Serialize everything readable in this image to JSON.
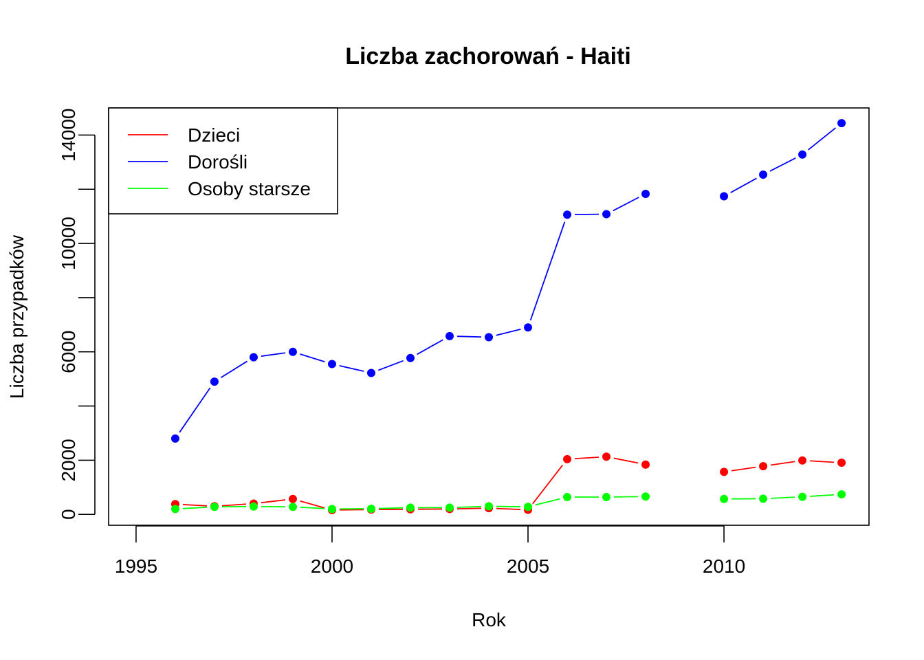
{
  "chart_data": {
    "type": "line",
    "title": "Liczba zachorowań -  Haiti",
    "xlabel": "Rok",
    "ylabel": "Liczba przypadków",
    "xlim": [
      1994.3,
      2013.7
    ],
    "ylim": [
      -400,
      15000
    ],
    "x_ticks": [
      1995,
      2000,
      2005,
      2010
    ],
    "y_ticks": [
      0,
      2000,
      4000,
      6000,
      8000,
      10000,
      12000,
      14000
    ],
    "y_tick_labels": [
      "0",
      "2000",
      "",
      "6000",
      "",
      "10000",
      "",
      "14000"
    ],
    "grid": false,
    "legend_position": "top-left",
    "x": [
      1996,
      1997,
      1998,
      1999,
      2000,
      2001,
      2002,
      2003,
      2004,
      2005,
      2006,
      2007,
      2008,
      2009,
      2010,
      2011,
      2012,
      2013
    ],
    "series": [
      {
        "name": "Dzieci",
        "color": "#ff0000",
        "values": [
          380,
          300,
          400,
          570,
          160,
          180,
          190,
          200,
          230,
          170,
          2040,
          2130,
          1840,
          null,
          1570,
          1780,
          1990,
          1910
        ]
      },
      {
        "name": "Dorośli",
        "color": "#0000ff",
        "values": [
          2800,
          4900,
          5800,
          6000,
          5550,
          5220,
          5770,
          6580,
          6540,
          6900,
          11060,
          11080,
          11830,
          null,
          11740,
          12540,
          13280,
          14440
        ]
      },
      {
        "name": "Osoby starsze",
        "color": "#00ff00",
        "values": [
          200,
          280,
          290,
          280,
          200,
          210,
          250,
          250,
          300,
          280,
          640,
          640,
          660,
          null,
          570,
          580,
          650,
          740
        ]
      }
    ]
  }
}
